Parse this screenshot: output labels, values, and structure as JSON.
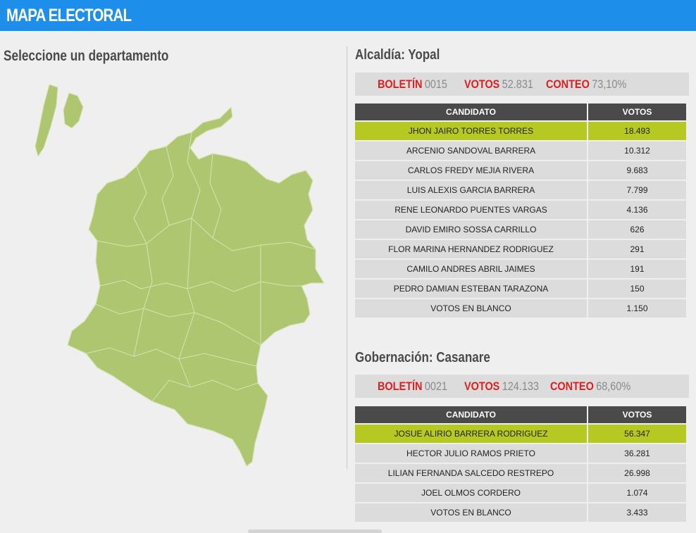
{
  "header": {
    "title": "MAPA ELECTORAL"
  },
  "map": {
    "heading": "Seleccione un departamento",
    "fill_color": "#adc66f",
    "border_color": "#d7e3b6"
  },
  "alcaldia": {
    "title": "Alcaldía: Yopal",
    "stats": {
      "boletin_label": "BOLETÍN",
      "boletin_value": "0015",
      "votos_label": "VOTOS",
      "votos_value": "52.831",
      "conteo_label": "CONTEO",
      "conteo_value": "73,10%"
    },
    "columns": {
      "candidate": "CANDIDATO",
      "votes": "VOTOS"
    },
    "rows": [
      {
        "name": "JHON JAIRO TORRES TORRES",
        "votes": "18.493",
        "winner": true
      },
      {
        "name": "ARCENIO SANDOVAL BARRERA",
        "votes": "10.312"
      },
      {
        "name": "CARLOS FREDY MEJIA RIVERA",
        "votes": "9.683"
      },
      {
        "name": "LUIS ALEXIS GARCIA BARRERA",
        "votes": "7.799"
      },
      {
        "name": "RENE LEONARDO PUENTES VARGAS",
        "votes": "4.136"
      },
      {
        "name": "DAVID EMIRO SOSSA CARRILLO",
        "votes": "626"
      },
      {
        "name": "FLOR MARINA HERNANDEZ RODRIGUEZ",
        "votes": "291"
      },
      {
        "name": "CAMILO ANDRES ABRIL JAIMES",
        "votes": "191"
      },
      {
        "name": "PEDRO DAMIAN ESTEBAN TARAZONA",
        "votes": "150"
      },
      {
        "name": "VOTOS EN BLANCO",
        "votes": "1.150"
      }
    ]
  },
  "gobernacion": {
    "title": "Gobernación: Casanare",
    "stats": {
      "boletin_label": "BOLETÍN",
      "boletin_value": "0021",
      "votos_label": "VOTOS",
      "votos_value": "124.133",
      "conteo_label": "CONTEO",
      "conteo_value": "68,60%"
    },
    "columns": {
      "candidate": "CANDIDATO",
      "votes": "VOTOS"
    },
    "rows": [
      {
        "name": "JOSUE ALIRIO BARRERA RODRIGUEZ",
        "votes": "56.347",
        "winner": true
      },
      {
        "name": "HECTOR JULIO RAMOS PRIETO",
        "votes": "36.281"
      },
      {
        "name": "LILIAN FERNANDA SALCEDO RESTREPO",
        "votes": "26.998"
      },
      {
        "name": "JOEL OLMOS CORDERO",
        "votes": "1.074"
      },
      {
        "name": "VOTOS EN BLANCO",
        "votes": "3.433"
      }
    ]
  }
}
